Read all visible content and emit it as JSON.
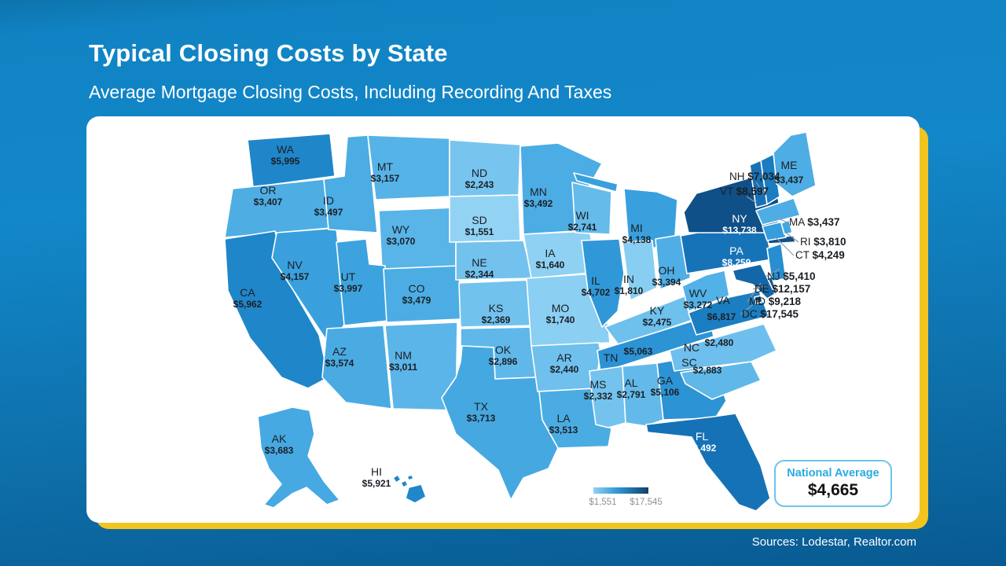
{
  "slide": {
    "title": "Typical Closing Costs by State",
    "subtitle": "Average Mortgage Closing Costs, Including Recording And Taxes",
    "source": "Sources: Lodestar, Realtor.com"
  },
  "national_average": {
    "label": "National Average",
    "value": "$4,665"
  },
  "legend": {
    "min_label": "$1,551",
    "max_label": "$17,545"
  },
  "colors": {
    "accent_yellow": "#F2C41F",
    "map_min": "#92D3F4",
    "map_max": "#0A3D66",
    "national_average_label": "#29ABE2",
    "background_blue": "#1287C9"
  },
  "chart_data": {
    "type": "heatmap",
    "subtype": "us-choropleth-map",
    "title": "Typical Closing Costs by State",
    "subtitle": "Average Mortgage Closing Costs, Including Recording And Taxes",
    "unit": "USD",
    "legend": {
      "min": 1551,
      "max": 17545,
      "min_label": "$1,551",
      "max_label": "$17,545",
      "position": "bottom-center"
    },
    "national_average": 4665,
    "states": [
      {
        "abbr": "WA",
        "value": 5995,
        "label": "$5,995"
      },
      {
        "abbr": "OR",
        "value": 3407,
        "label": "$3,407"
      },
      {
        "abbr": "CA",
        "value": 5962,
        "label": "$5,962"
      },
      {
        "abbr": "NV",
        "value": 4157,
        "label": "$4,157"
      },
      {
        "abbr": "ID",
        "value": 3497,
        "label": "$3,497"
      },
      {
        "abbr": "MT",
        "value": 3157,
        "label": "$3,157"
      },
      {
        "abbr": "WY",
        "value": 3070,
        "label": "$3,070"
      },
      {
        "abbr": "UT",
        "value": 3997,
        "label": "$3,997"
      },
      {
        "abbr": "CO",
        "value": 3479,
        "label": "$3,479"
      },
      {
        "abbr": "AZ",
        "value": 3574,
        "label": "$3,574"
      },
      {
        "abbr": "NM",
        "value": 3011,
        "label": "$3,011"
      },
      {
        "abbr": "ND",
        "value": 2243,
        "label": "$2,243"
      },
      {
        "abbr": "SD",
        "value": 1551,
        "label": "$1,551"
      },
      {
        "abbr": "NE",
        "value": 2344,
        "label": "$2,344"
      },
      {
        "abbr": "KS",
        "value": 2369,
        "label": "$2,369"
      },
      {
        "abbr": "OK",
        "value": 2896,
        "label": "$2,896"
      },
      {
        "abbr": "TX",
        "value": 3713,
        "label": "$3,713"
      },
      {
        "abbr": "MN",
        "value": 3492,
        "label": "$3,492"
      },
      {
        "abbr": "IA",
        "value": 1640,
        "label": "$1,640"
      },
      {
        "abbr": "MO",
        "value": 1740,
        "label": "$1,740"
      },
      {
        "abbr": "AR",
        "value": 2440,
        "label": "$2,440"
      },
      {
        "abbr": "LA",
        "value": 3513,
        "label": "$3,513"
      },
      {
        "abbr": "WI",
        "value": 2741,
        "label": "$2,741"
      },
      {
        "abbr": "IL",
        "value": 4702,
        "label": "$4,702"
      },
      {
        "abbr": "MI",
        "value": 4138,
        "label": "$4,138"
      },
      {
        "abbr": "IN",
        "value": 1810,
        "label": "$1,810"
      },
      {
        "abbr": "OH",
        "value": 3394,
        "label": "$3,394"
      },
      {
        "abbr": "KY",
        "value": 2475,
        "label": "$2,475"
      },
      {
        "abbr": "TN",
        "value": 5063,
        "label": "$5,063"
      },
      {
        "abbr": "MS",
        "value": 2332,
        "label": "$2,332"
      },
      {
        "abbr": "AL",
        "value": 2791,
        "label": "$2,791"
      },
      {
        "abbr": "GA",
        "value": 5106,
        "label": "$5,106"
      },
      {
        "abbr": "FL",
        "value": 8492,
        "label": "$8,492"
      },
      {
        "abbr": "SC",
        "value": 2883,
        "label": "$2,883"
      },
      {
        "abbr": "NC",
        "value": 2480,
        "label": "$2,480"
      },
      {
        "abbr": "VA",
        "value": 6817,
        "label": "$6,817"
      },
      {
        "abbr": "WV",
        "value": 3272,
        "label": "$3,272"
      },
      {
        "abbr": "PA",
        "value": 8259,
        "label": "$8,259"
      },
      {
        "abbr": "NY",
        "value": 13738,
        "label": "$13,738"
      },
      {
        "abbr": "NJ",
        "value": 5410,
        "label": "$5,410"
      },
      {
        "abbr": "DE",
        "value": 12157,
        "label": "$12,157"
      },
      {
        "abbr": "MD",
        "value": 9218,
        "label": "$9,218"
      },
      {
        "abbr": "DC",
        "value": 17545,
        "label": "$17,545"
      },
      {
        "abbr": "CT",
        "value": 4249,
        "label": "$4,249"
      },
      {
        "abbr": "RI",
        "value": 3810,
        "label": "$3,810"
      },
      {
        "abbr": "MA",
        "value": 3437,
        "label": "$3,437"
      },
      {
        "abbr": "VT",
        "value": 8597,
        "label": "$8,597"
      },
      {
        "abbr": "NH",
        "value": 7034,
        "label": "$7,034"
      },
      {
        "abbr": "ME",
        "value": 3437,
        "label": "$3,437"
      },
      {
        "abbr": "AK",
        "value": 3683,
        "label": "$3,683"
      },
      {
        "abbr": "HI",
        "value": 5921,
        "label": "$5,921"
      }
    ]
  }
}
